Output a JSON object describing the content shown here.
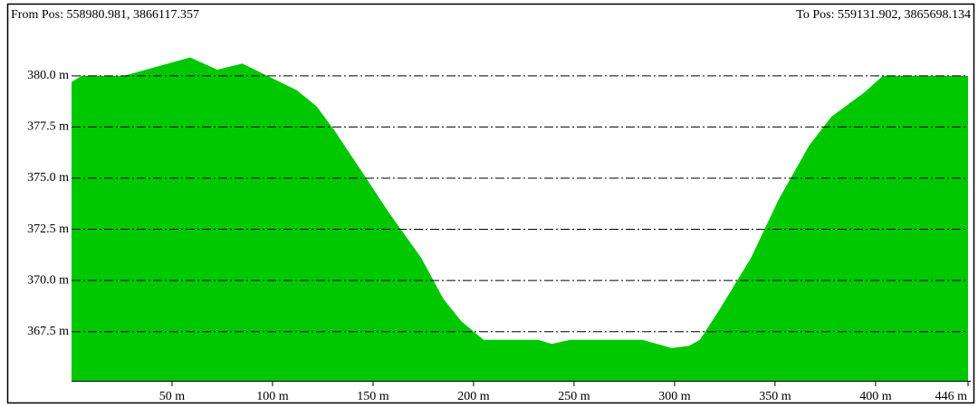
{
  "chart_data": {
    "type": "area",
    "from_label": "From Pos: 558980.981, 3866117.357",
    "to_label": "To Pos: 559131.902, 3865698.134",
    "x": [
      0,
      5,
      26,
      59,
      72.5,
      85,
      99.5,
      112,
      122,
      131,
      144.6,
      158,
      174,
      185,
      194,
      205,
      232,
      239,
      248,
      284,
      298.6,
      307,
      312.6,
      322.5,
      338,
      352,
      367,
      378,
      394.6,
      403.6,
      446
    ],
    "values": [
      379.7,
      380,
      380,
      380.9,
      380.3,
      380.6,
      379.9,
      379.3,
      378.5,
      377.3,
      375.3,
      373.3,
      371.1,
      369.1,
      368.0,
      367.1,
      367.1,
      366.9,
      367.1,
      367.1,
      366.7,
      366.8,
      367.1,
      368.6,
      371.1,
      374.0,
      376.6,
      378.0,
      379.2,
      380,
      380
    ],
    "color": "#00c800",
    "xlim": [
      0,
      446
    ],
    "xticks": [
      {
        "value": 50,
        "label": "50 m"
      },
      {
        "value": 100,
        "label": "100 m"
      },
      {
        "value": 150,
        "label": "150 m"
      },
      {
        "value": 200,
        "label": "200 m"
      },
      {
        "value": 250,
        "label": "250 m"
      },
      {
        "value": 300,
        "label": "300 m"
      },
      {
        "value": 350,
        "label": "350 m"
      },
      {
        "value": 400,
        "label": "400 m"
      },
      {
        "value": 446,
        "label": "446 m"
      }
    ],
    "ylim": [
      365.1,
      382.6
    ],
    "yticks": [
      {
        "value": 367.5,
        "label": "367.5 m"
      },
      {
        "value": 370,
        "label": "370.0 m"
      },
      {
        "value": 372.5,
        "label": "372.5 m"
      },
      {
        "value": 375,
        "label": "375.0 m"
      },
      {
        "value": 377.5,
        "label": "377.5 m"
      },
      {
        "value": 380,
        "label": "380.0 m"
      }
    ],
    "grid": true
  }
}
